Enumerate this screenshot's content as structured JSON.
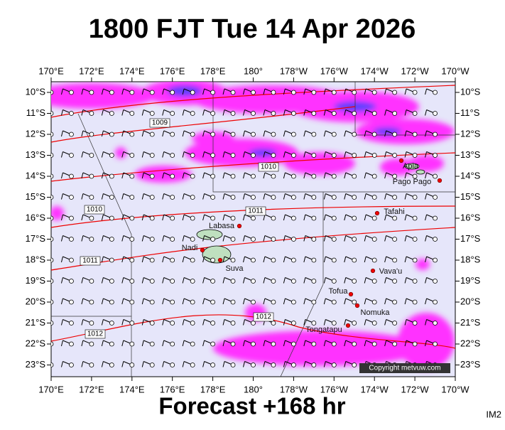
{
  "title": "1800 FJT Tue 14 Apr 2026",
  "footer": "Forecast +168 hr",
  "corner_label": "IM2",
  "copyright": "Copyright metvuw.com",
  "lon_labels": [
    "170°E",
    "172°E",
    "174°E",
    "176°E",
    "178°E",
    "180°",
    "178°W",
    "176°W",
    "174°W",
    "172°W",
    "170°W"
  ],
  "lat_labels": [
    "10°S",
    "11°S",
    "12°S",
    "13°S",
    "14°S",
    "15°S",
    "16°S",
    "17°S",
    "18°S",
    "19°S",
    "20°S",
    "21°S",
    "22°S",
    "23°S"
  ],
  "places": [
    {
      "label": "Labasa"
    },
    {
      "label": "Nadi"
    },
    {
      "label": "Suva"
    },
    {
      "label": "Apia"
    },
    {
      "label": "Pago Pago"
    },
    {
      "label": "Tafahi"
    },
    {
      "label": "Vava'u"
    },
    {
      "label": "Tofua"
    },
    {
      "label": "Nomuka"
    },
    {
      "label": "Tongatapu"
    }
  ],
  "isobar_labels": [
    "1009",
    "1010",
    "1010",
    "1011",
    "1011",
    "1012",
    "1012"
  ]
}
